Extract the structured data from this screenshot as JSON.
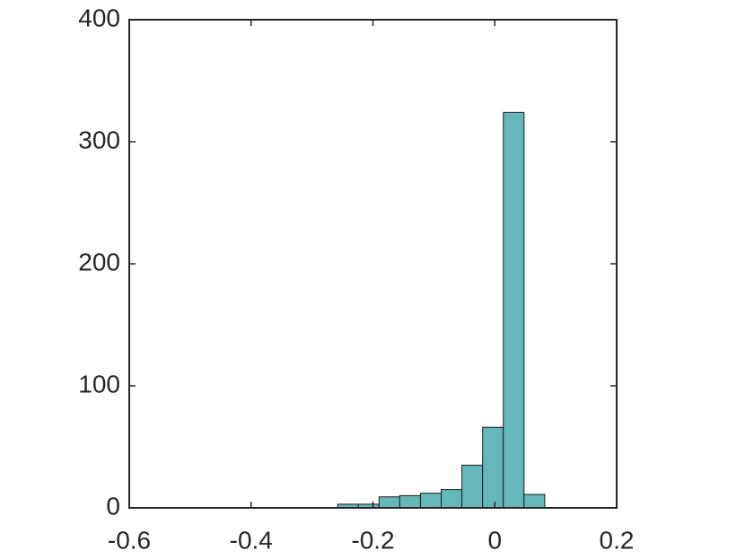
{
  "chart_data": {
    "type": "histogram",
    "bins": [
      -0.258,
      -0.224,
      -0.19,
      -0.156,
      -0.122,
      -0.088,
      -0.054,
      -0.02,
      0.014,
      0.048,
      0.082
    ],
    "counts": [
      3,
      3,
      9,
      10,
      12,
      15,
      35,
      66,
      324,
      11
    ],
    "color": "#66b8b8",
    "xlim": [
      -0.6,
      0.2
    ],
    "xticks": [
      -0.6,
      -0.4,
      -0.2,
      0,
      0.2
    ],
    "ylim": [
      0,
      400
    ],
    "yticks": [
      0,
      100,
      200,
      300,
      400
    ],
    "grid": false
  }
}
